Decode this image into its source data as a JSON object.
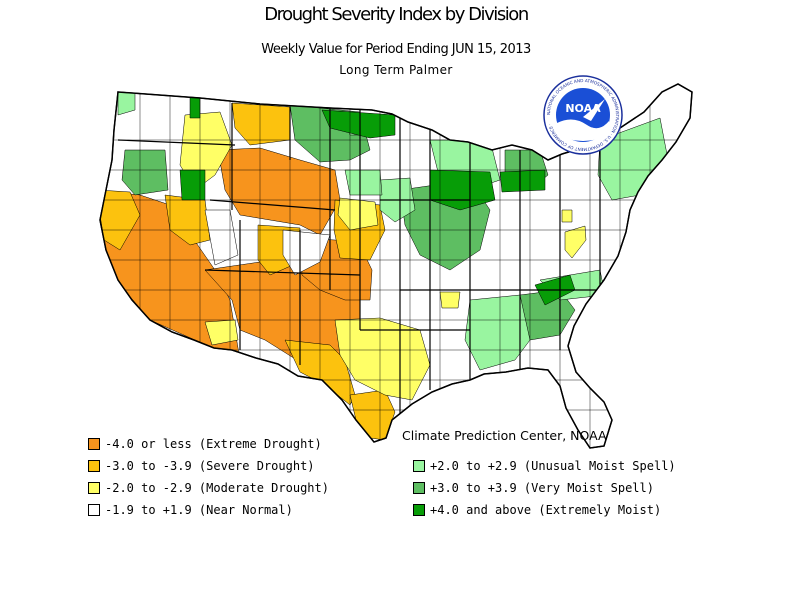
{
  "map": {
    "title": "Drought Severity Index by Division",
    "subtitle": "Weekly Value for Period Ending JUN 15, 2013",
    "subtitle2": "Long Term Palmer",
    "credit": "Climate Prediction Center, NOAA",
    "logo_text": "NOAA",
    "logo_ring_text": "NATIONAL OCEANIC AND ATMOSPHERIC ADMINISTRATION · U.S. DEPARTMENT OF COMMERCE ·"
  },
  "colors": {
    "extreme": "#f7941d",
    "severe": "#fcc20e",
    "moderate": "#ffff66",
    "normal": "#ffffff",
    "unusual_moist": "#99f5a0",
    "very_moist": "#5ebe62",
    "extremely_moist": "#079d07",
    "water": "#ffffff"
  },
  "legend": {
    "left": [
      {
        "key": "extreme",
        "label": "-4.0 or less (Extreme Drought)"
      },
      {
        "key": "severe",
        "label": "-3.0 to -3.9 (Severe Drought)"
      },
      {
        "key": "moderate",
        "label": "-2.0 to -2.9 (Moderate Drought)"
      },
      {
        "key": "normal",
        "label": "-1.9 to +1.9 (Near Normal)"
      }
    ],
    "right": [
      {
        "key": "unusual_moist",
        "label": "+2.0 to +2.9 (Unusual Moist Spell)"
      },
      {
        "key": "very_moist",
        "label": "+3.0 to +3.9 (Very Moist Spell)"
      },
      {
        "key": "extremely_moist",
        "label": "+4.0 and above (Extremely Moist)"
      }
    ]
  }
}
